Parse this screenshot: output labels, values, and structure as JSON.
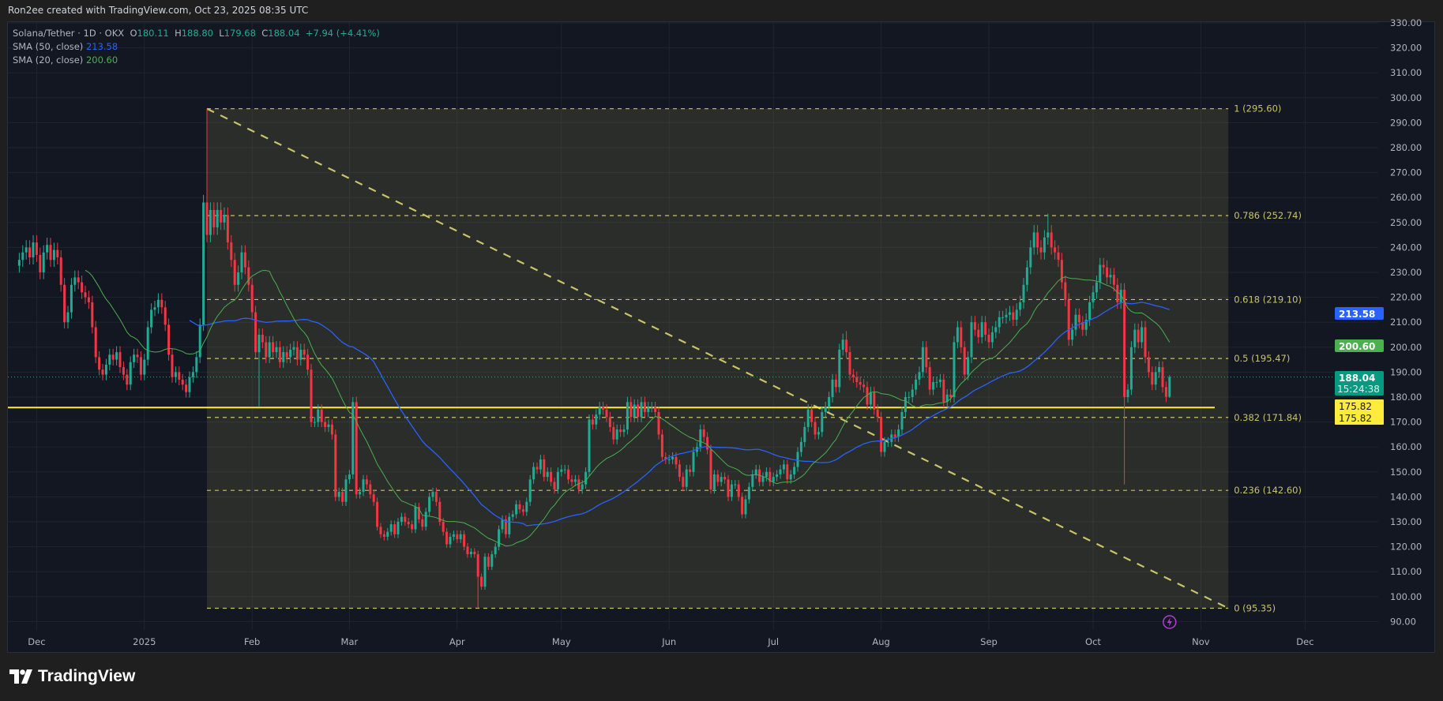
{
  "credit": "Ron2ee created with TradingView.com, Oct 23, 2025 08:35 UTC",
  "legend": {
    "symbol": "Solana/Tether · 1D · OKX",
    "o_label": "O",
    "o": "180.11",
    "h_label": "H",
    "h": "188.80",
    "l_label": "L",
    "l": "179.68",
    "c_label": "C",
    "c": "188.04",
    "change": "+7.94 (+4.41%)",
    "sma50_label": "SMA (50, close)",
    "sma50": "213.58",
    "sma20_label": "SMA (20, close)",
    "sma20": "200.60"
  },
  "logo": "TradingView",
  "price_tags": {
    "sma50": "213.58",
    "sma20": "200.60",
    "last": "188.04",
    "countdown": "15:24:38",
    "line1": "175.82",
    "line2": "175.82"
  },
  "colors": {
    "up": "#22ab94",
    "down": "#f23645",
    "sma50": "#2962ff",
    "sma20": "#4caf50",
    "fib": "#c9c46a",
    "hline": "#ffeb3b",
    "background": "#131722"
  },
  "chart_data": {
    "type": "candlestick",
    "symbol": "Solana/Tether",
    "interval": "1D",
    "exchange": "OKX",
    "ylim": [
      90,
      330
    ],
    "y_ticks": [
      "90.00",
      "100.00",
      "110.00",
      "120.00",
      "130.00",
      "140.00",
      "150.00",
      "160.00",
      "170.00",
      "180.00",
      "190.00",
      "200.00",
      "210.00",
      "220.00",
      "230.00",
      "240.00",
      "250.00",
      "260.00",
      "270.00",
      "280.00",
      "290.00",
      "300.00",
      "310.00",
      "320.00",
      "330.00"
    ],
    "x_ticks": [
      {
        "label": "Dec",
        "date": "2024-12-01"
      },
      {
        "label": "2025",
        "date": "2025-01-01"
      },
      {
        "label": "Feb",
        "date": "2025-02-01"
      },
      {
        "label": "Mar",
        "date": "2025-03-01"
      },
      {
        "label": "Apr",
        "date": "2025-04-01"
      },
      {
        "label": "May",
        "date": "2025-05-01"
      },
      {
        "label": "Jun",
        "date": "2025-06-01"
      },
      {
        "label": "Jul",
        "date": "2025-07-01"
      },
      {
        "label": "Aug",
        "date": "2025-08-01"
      },
      {
        "label": "Sep",
        "date": "2025-09-01"
      },
      {
        "label": "Oct",
        "date": "2025-10-01"
      },
      {
        "label": "Nov",
        "date": "2025-11-01"
      },
      {
        "label": "Dec",
        "date": "2025-12-01"
      }
    ],
    "grid": true,
    "months": [
      {
        "month": "2024-11",
        "start_day": 26,
        "close": [
          235,
          238,
          240,
          236,
          242
        ]
      },
      {
        "month": "2024-12",
        "start_day": 1,
        "close": [
          237,
          230,
          238,
          241,
          235,
          239,
          236,
          225,
          210,
          214,
          225,
          228,
          226,
          222,
          220,
          218,
          208,
          196,
          191,
          189,
          193,
          197,
          195,
          198,
          192,
          189,
          185,
          194,
          197,
          196,
          189
        ]
      },
      {
        "month": "2025-01",
        "start_day": 1,
        "close": [
          195,
          208,
          215,
          216,
          219,
          216,
          209,
          197,
          188,
          190,
          187,
          185,
          182,
          188,
          190,
          196,
          209,
          258,
          245,
          255,
          248,
          255,
          250,
          253,
          242,
          235,
          225,
          230,
          238,
          232,
          225
        ]
      },
      {
        "month": "2025-02",
        "start_day": 1,
        "close": [
          214,
          198,
          205,
          202,
          196,
          202,
          198,
          200,
          194,
          198,
          196,
          199,
          200,
          195,
          199,
          197,
          191,
          170,
          170,
          175,
          170,
          168,
          169,
          165,
          140,
          142,
          138,
          147
        ]
      },
      {
        "month": "2025-03",
        "start_day": 1,
        "close": [
          149,
          178,
          141,
          142,
          147,
          145,
          141,
          138,
          128,
          125,
          124,
          126,
          129,
          125,
          130,
          132,
          130,
          129,
          127,
          136,
          131,
          128,
          134,
          140,
          142,
          138,
          130,
          126,
          121,
          124,
          125
        ]
      },
      {
        "month": "2025-04",
        "start_day": 1,
        "close": [
          123,
          125,
          120,
          117,
          118,
          117,
          108,
          104,
          116,
          112,
          117,
          120,
          127,
          131,
          125,
          132,
          133,
          137,
          135,
          134,
          138,
          147,
          152,
          151,
          155,
          148,
          150,
          146,
          143,
          150
        ]
      },
      {
        "month": "2025-05",
        "start_day": 1,
        "close": [
          151,
          151,
          147,
          146,
          147,
          143,
          145,
          150,
          171,
          169,
          173,
          176,
          175,
          172,
          168,
          163,
          167,
          166,
          167,
          178,
          172,
          177,
          172,
          178,
          174,
          176,
          176,
          174,
          165,
          156,
          155
        ]
      },
      {
        "month": "2025-06",
        "start_day": 1,
        "close": [
          155,
          156,
          153,
          148,
          144,
          151,
          150,
          158,
          160,
          167,
          164,
          159,
          143,
          149,
          146,
          148,
          147,
          140,
          145,
          145,
          140,
          133,
          139,
          144,
          149,
          151,
          146,
          148,
          150,
          146
        ]
      },
      {
        "month": "2025-07",
        "start_day": 1,
        "close": [
          148,
          149,
          151,
          153,
          147,
          149,
          152,
          158,
          162,
          168,
          175,
          170,
          165,
          166,
          174,
          176,
          180,
          187,
          184,
          199,
          203,
          198,
          189,
          188,
          186,
          185,
          184,
          177,
          182,
          175,
          172
        ]
      },
      {
        "month": "2025-08",
        "start_day": 1,
        "close": [
          158,
          162,
          162,
          165,
          164,
          167,
          174,
          180,
          180,
          183,
          187,
          190,
          200,
          192,
          183,
          186,
          186,
          187,
          178,
          181,
          180,
          202,
          208,
          200,
          189,
          196,
          210,
          207,
          204,
          210,
          205
        ]
      },
      {
        "month": "2025-09",
        "start_day": 1,
        "close": [
          202,
          206,
          208,
          212,
          212,
          213,
          214,
          211,
          215,
          218,
          225,
          232,
          240,
          246,
          240,
          238,
          244,
          246,
          240,
          238,
          235,
          226,
          219,
          203,
          207,
          213,
          210,
          207,
          211,
          218
        ]
      },
      {
        "month": "2025-10",
        "start_day": 1,
        "close": [
          222,
          226,
          233,
          232,
          228,
          229,
          225,
          218,
          223,
          180,
          183,
          200,
          207,
          202,
          208,
          196,
          190,
          185,
          190,
          192,
          184,
          180.11,
          188.04
        ]
      }
    ],
    "wick_extremes": [
      {
        "date": "2025-01-19",
        "high": 295.6
      },
      {
        "date": "2025-02-03",
        "low": 176
      },
      {
        "date": "2025-03-02",
        "high": 180
      },
      {
        "date": "2025-04-07",
        "low": 95.35
      },
      {
        "date": "2025-07-22",
        "high": 206.5
      },
      {
        "date": "2025-09-18",
        "high": 253.5
      },
      {
        "date": "2025-10-10",
        "low": 145
      },
      {
        "date": "2025-10-23",
        "high": 188.8,
        "low": 179.68
      }
    ],
    "indicators": [
      {
        "name": "SMA (50, close)",
        "period": 50,
        "last": 213.58
      },
      {
        "name": "SMA (20, close)",
        "period": 20,
        "last": 200.6
      }
    ],
    "horizontal_line": 175.82,
    "last_price": 188.04,
    "fib_retracement": {
      "from": {
        "date": "2025-01-19",
        "price": 295.6
      },
      "to": {
        "date": "2025-11-08",
        "price": 95.35
      },
      "levels": [
        {
          "ratio": 1,
          "price": 295.6,
          "label": "1 (295.60)"
        },
        {
          "ratio": 0.786,
          "price": 252.74,
          "label": "0.786 (252.74)"
        },
        {
          "ratio": 0.618,
          "price": 219.1,
          "label": "0.618 (219.10)"
        },
        {
          "ratio": 0.5,
          "price": 195.47,
          "label": "0.5 (195.47)"
        },
        {
          "ratio": 0.382,
          "price": 171.84,
          "label": "0.382 (171.84)"
        },
        {
          "ratio": 0.236,
          "price": 142.6,
          "label": "0.236 (142.60)"
        },
        {
          "ratio": 0,
          "price": 95.35,
          "label": "0 (95.35)"
        }
      ]
    }
  }
}
